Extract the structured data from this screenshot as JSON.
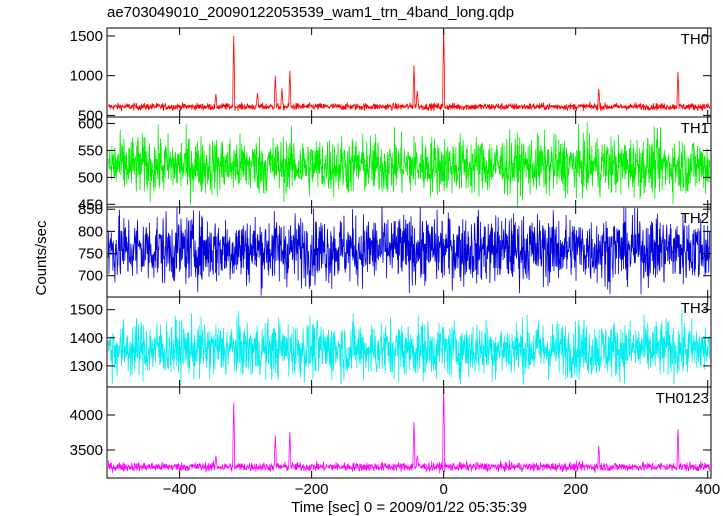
{
  "chart_data": {
    "type": "line",
    "title": "ae703049010_20090122053539_wam1_trn_4band_long.qdp",
    "xlabel": "Time [sec] 0 = 2009/01/22 05:35:39",
    "ylabel": "Counts/sec",
    "xlim": [
      -510,
      405
    ],
    "xticks": [
      -400,
      -200,
      0,
      200,
      400
    ],
    "xtick_labels": [
      "−400",
      "−200",
      "0",
      "200",
      "400"
    ],
    "panels": [
      {
        "name": "TH0",
        "color": "#ff0000",
        "ylim": [
          480,
          1600
        ],
        "yticks": [
          500,
          1000,
          1500
        ],
        "baseline": 610,
        "noise": 22,
        "spikes": [
          [
            -345,
            770
          ],
          [
            -318,
            1500
          ],
          [
            -282,
            780
          ],
          [
            -255,
            1000
          ],
          [
            -245,
            840
          ],
          [
            -233,
            1060
          ],
          [
            -45,
            1130
          ],
          [
            -40,
            810
          ],
          [
            0,
            1600
          ],
          [
            235,
            830
          ],
          [
            355,
            1050
          ]
        ]
      },
      {
        "name": "TH1",
        "color": "#00ee00",
        "ylim": [
          445,
          612
        ],
        "yticks": [
          450,
          500,
          550,
          600
        ],
        "baseline": 522,
        "noise": 27,
        "spikes": []
      },
      {
        "name": "TH2",
        "color": "#0000dd",
        "ylim": [
          652,
          855
        ],
        "yticks": [
          700,
          750,
          800,
          850
        ],
        "baseline": 760,
        "noise": 38,
        "spikes": []
      },
      {
        "name": "TH3",
        "color": "#00eeee",
        "ylim": [
          1225,
          1545
        ],
        "yticks": [
          1300,
          1400,
          1500
        ],
        "baseline": 1360,
        "noise": 50,
        "spikes": []
      },
      {
        "name": "TH0123",
        "color": "#ff00ff",
        "ylim": [
          3100,
          4400
        ],
        "yticks": [
          3500,
          4000
        ],
        "baseline": 3260,
        "noise": 32,
        "spikes": [
          [
            -345,
            3420
          ],
          [
            -318,
            4180
          ],
          [
            -255,
            3700
          ],
          [
            -233,
            3760
          ],
          [
            -45,
            3900
          ],
          [
            -40,
            3420
          ],
          [
            0,
            4400
          ],
          [
            235,
            3560
          ],
          [
            355,
            3800
          ]
        ]
      }
    ]
  }
}
